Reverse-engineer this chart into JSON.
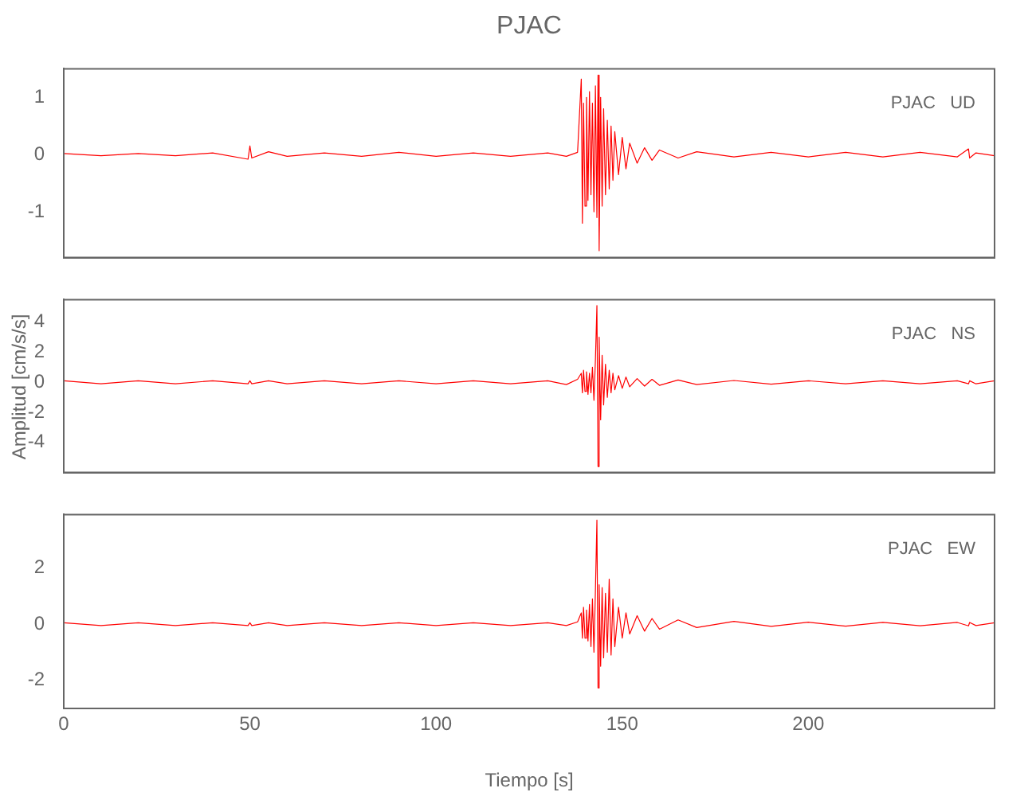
{
  "chart_data": [
    {
      "type": "line",
      "title": "PJAC",
      "annotations": [
        "PJAC   UD"
      ],
      "tick_labels": "y",
      "xlim": [
        0,
        250
      ],
      "xticks": [
        0,
        50,
        100,
        150,
        200
      ],
      "ylim": [
        -1.8,
        1.5
      ],
      "yticks": [
        -1,
        0,
        1
      ],
      "x": [
        0,
        10,
        20,
        30,
        40,
        49.5,
        50,
        50.5,
        55,
        60,
        70,
        80,
        90,
        100,
        110,
        120,
        130,
        135,
        138,
        139,
        139.3,
        139.6,
        140,
        140.4,
        140.8,
        141.2,
        141.6,
        142,
        142.4,
        142.8,
        143.2,
        143.5,
        143.8,
        144.2,
        144.6,
        145,
        145.5,
        146,
        146.5,
        147,
        147.5,
        148,
        149,
        150,
        151,
        152,
        154,
        156,
        158,
        160,
        165,
        170,
        180,
        190,
        200,
        210,
        220,
        230,
        240,
        243,
        243.3,
        245,
        250
      ],
      "series": [
        {
          "color": "#ff0000",
          "values": [
            0.02,
            -0.02,
            0.02,
            -0.02,
            0.03,
            -0.08,
            0.15,
            -0.06,
            0.05,
            -0.03,
            0.03,
            -0.03,
            0.04,
            -0.03,
            0.03,
            -0.03,
            0.03,
            -0.03,
            0.04,
            1.32,
            -1.2,
            0.9,
            -0.9,
            1.0,
            -0.8,
            1.1,
            -0.7,
            0.9,
            -1.0,
            1.2,
            -1.1,
            1.39,
            -1.68,
            1.0,
            -0.9,
            0.8,
            -0.7,
            0.6,
            -0.6,
            0.5,
            -0.45,
            0.4,
            -0.35,
            0.3,
            -0.25,
            0.2,
            -0.15,
            0.12,
            -0.1,
            0.08,
            -0.06,
            0.05,
            -0.04,
            0.04,
            -0.04,
            0.04,
            -0.04,
            0.04,
            -0.04,
            0.1,
            -0.06,
            0.03,
            -0.02
          ]
        }
      ]
    },
    {
      "type": "line",
      "ylabel": "Amplitud [cm/s/s]",
      "annotations": [
        "PJAC   NS"
      ],
      "tick_labels": "y",
      "xlim": [
        0,
        250
      ],
      "xticks": [
        0,
        50,
        100,
        150,
        200
      ],
      "ylim": [
        -6,
        5.5
      ],
      "yticks": [
        -4,
        -2,
        0,
        2,
        4
      ],
      "x": [
        0,
        10,
        20,
        30,
        40,
        49.5,
        50,
        50.5,
        55,
        60,
        70,
        80,
        90,
        100,
        110,
        120,
        130,
        135,
        138,
        139,
        139.3,
        139.6,
        140,
        140.4,
        140.8,
        141.2,
        141.6,
        142,
        142.4,
        142.8,
        143.2,
        143.5,
        143.8,
        144.2,
        144.6,
        145,
        145.5,
        146,
        146.5,
        147,
        147.5,
        148,
        149,
        150,
        151,
        152,
        154,
        156,
        158,
        160,
        165,
        170,
        180,
        190,
        200,
        210,
        220,
        230,
        240,
        243,
        243.3,
        245,
        250
      ],
      "series": [
        {
          "color": "#ff0000",
          "values": [
            0.1,
            -0.1,
            0.1,
            -0.1,
            0.1,
            -0.1,
            0.1,
            -0.1,
            0.1,
            -0.1,
            0.1,
            -0.1,
            0.1,
            -0.1,
            0.1,
            -0.1,
            0.1,
            -0.15,
            0.2,
            0.6,
            -0.7,
            0.8,
            -0.6,
            0.7,
            -0.8,
            0.6,
            -0.7,
            1.0,
            -1.2,
            1.5,
            5.1,
            -5.6,
            3.0,
            -2.5,
            1.8,
            -1.5,
            1.2,
            -1.0,
            0.8,
            -0.7,
            0.6,
            -0.5,
            0.45,
            -0.4,
            0.35,
            -0.3,
            0.25,
            -0.25,
            0.2,
            -0.2,
            0.15,
            -0.15,
            0.12,
            -0.12,
            0.1,
            -0.1,
            0.1,
            -0.1,
            0.1,
            -0.1,
            0.1,
            -0.1,
            0.1
          ]
        }
      ]
    },
    {
      "type": "line",
      "xlabel": "Tiempo [s]",
      "annotations": [
        "PJAC   EW"
      ],
      "xlim": [
        0,
        250
      ],
      "xticks": [
        0,
        50,
        100,
        150,
        200
      ],
      "ylim": [
        -3,
        3.9
      ],
      "yticks": [
        -2,
        0,
        2
      ],
      "x": [
        0,
        10,
        20,
        30,
        40,
        49.5,
        50,
        50.5,
        55,
        60,
        70,
        80,
        90,
        100,
        110,
        120,
        130,
        135,
        138,
        139,
        139.3,
        139.6,
        140,
        140.4,
        140.8,
        141.2,
        141.6,
        142,
        142.4,
        142.8,
        143.2,
        143.5,
        143.8,
        144.2,
        144.6,
        145,
        145.5,
        146,
        146.5,
        147,
        147.5,
        148,
        149,
        150,
        151,
        152,
        154,
        156,
        158,
        160,
        165,
        170,
        180,
        190,
        200,
        210,
        220,
        230,
        240,
        243,
        243.3,
        245,
        250
      ],
      "series": [
        {
          "color": "#ff0000",
          "values": [
            0.05,
            -0.05,
            0.05,
            -0.05,
            0.05,
            -0.05,
            0.05,
            -0.05,
            0.05,
            -0.05,
            0.05,
            -0.05,
            0.05,
            -0.05,
            0.05,
            -0.05,
            0.05,
            -0.05,
            0.08,
            0.4,
            -0.5,
            0.6,
            -0.5,
            0.5,
            -0.6,
            0.7,
            -0.8,
            0.9,
            -1.0,
            1.2,
            3.7,
            -2.27,
            1.4,
            -1.5,
            1.3,
            -1.2,
            1.1,
            -1.0,
            1.6,
            -1.1,
            0.9,
            -0.8,
            0.6,
            -0.5,
            0.4,
            -0.35,
            0.3,
            -0.25,
            0.2,
            -0.18,
            0.15,
            -0.12,
            0.1,
            -0.08,
            0.07,
            -0.07,
            0.06,
            -0.06,
            0.06,
            -0.06,
            0.06,
            -0.05,
            0.05
          ]
        }
      ]
    }
  ]
}
